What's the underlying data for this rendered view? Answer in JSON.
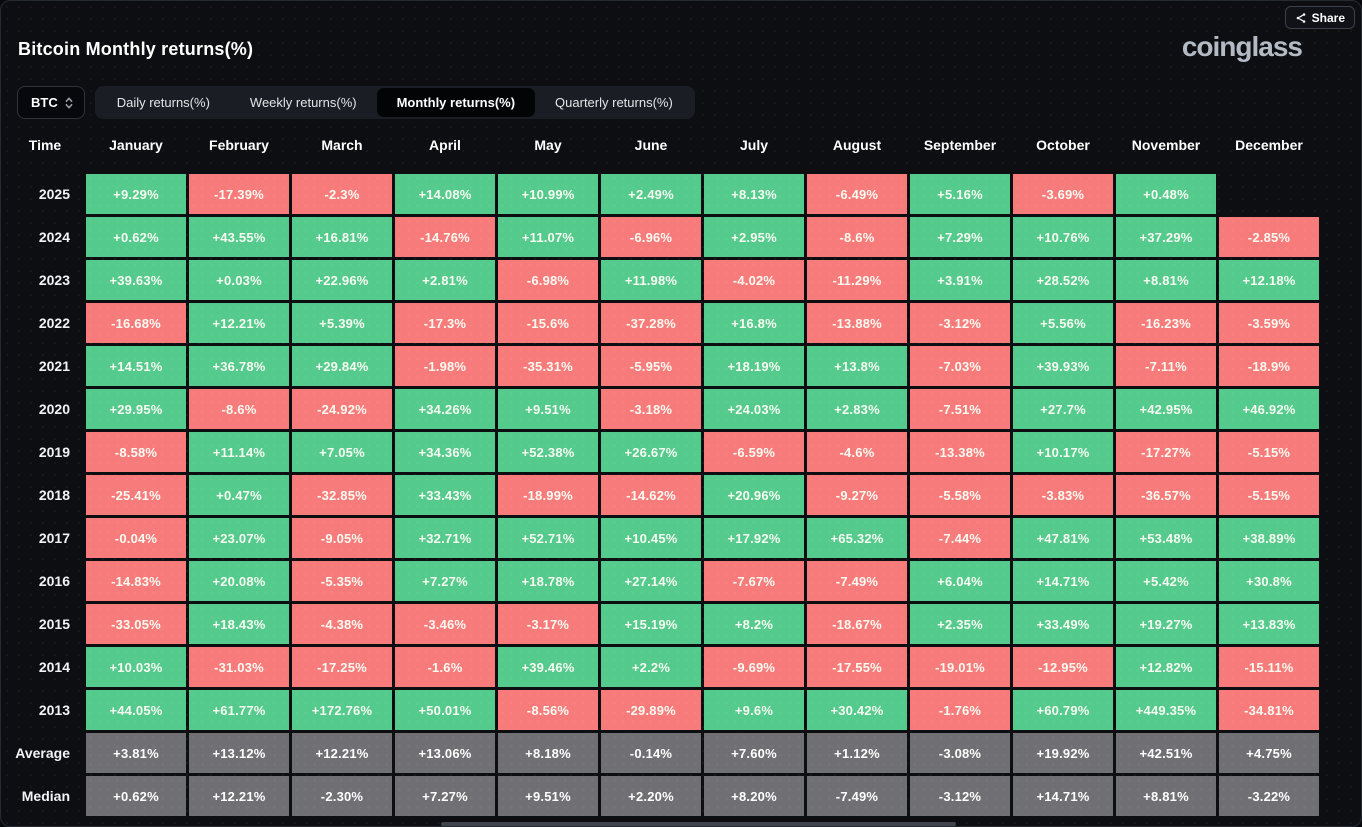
{
  "header": {
    "title": "Bitcoin Monthly returns(%)",
    "brand": "coinglass",
    "share_label": "Share"
  },
  "controls": {
    "symbol": "BTC",
    "tabs": [
      {
        "label": "Daily returns(%)",
        "active": false
      },
      {
        "label": "Weekly returns(%)",
        "active": false
      },
      {
        "label": "Monthly returns(%)",
        "active": true
      },
      {
        "label": "Quarterly returns(%)",
        "active": false
      }
    ]
  },
  "colors": {
    "positive": "#55ca8d",
    "negative": "#f87b7b",
    "summary": "#707074",
    "tab_active_bg": "#030406"
  },
  "chart_data": {
    "type": "heatmap",
    "title": "Bitcoin Monthly returns(%)",
    "row_header": "Time",
    "columns": [
      "January",
      "February",
      "March",
      "April",
      "May",
      "June",
      "July",
      "August",
      "September",
      "October",
      "November",
      "December"
    ],
    "rows": [
      {
        "label": "2025",
        "kind": "year",
        "values": [
          "+9.29%",
          "-17.39%",
          "-2.3%",
          "+14.08%",
          "+10.99%",
          "+2.49%",
          "+8.13%",
          "-6.49%",
          "+5.16%",
          "-3.69%",
          "+0.48%",
          null
        ]
      },
      {
        "label": "2024",
        "kind": "year",
        "values": [
          "+0.62%",
          "+43.55%",
          "+16.81%",
          "-14.76%",
          "+11.07%",
          "-6.96%",
          "+2.95%",
          "-8.6%",
          "+7.29%",
          "+10.76%",
          "+37.29%",
          "-2.85%"
        ]
      },
      {
        "label": "2023",
        "kind": "year",
        "values": [
          "+39.63%",
          "+0.03%",
          "+22.96%",
          "+2.81%",
          "-6.98%",
          "+11.98%",
          "-4.02%",
          "-11.29%",
          "+3.91%",
          "+28.52%",
          "+8.81%",
          "+12.18%"
        ]
      },
      {
        "label": "2022",
        "kind": "year",
        "values": [
          "-16.68%",
          "+12.21%",
          "+5.39%",
          "-17.3%",
          "-15.6%",
          "-37.28%",
          "+16.8%",
          "-13.88%",
          "-3.12%",
          "+5.56%",
          "-16.23%",
          "-3.59%"
        ]
      },
      {
        "label": "2021",
        "kind": "year",
        "values": [
          "+14.51%",
          "+36.78%",
          "+29.84%",
          "-1.98%",
          "-35.31%",
          "-5.95%",
          "+18.19%",
          "+13.8%",
          "-7.03%",
          "+39.93%",
          "-7.11%",
          "-18.9%"
        ]
      },
      {
        "label": "2020",
        "kind": "year",
        "values": [
          "+29.95%",
          "-8.6%",
          "-24.92%",
          "+34.26%",
          "+9.51%",
          "-3.18%",
          "+24.03%",
          "+2.83%",
          "-7.51%",
          "+27.7%",
          "+42.95%",
          "+46.92%"
        ]
      },
      {
        "label": "2019",
        "kind": "year",
        "values": [
          "-8.58%",
          "+11.14%",
          "+7.05%",
          "+34.36%",
          "+52.38%",
          "+26.67%",
          "-6.59%",
          "-4.6%",
          "-13.38%",
          "+10.17%",
          "-17.27%",
          "-5.15%"
        ]
      },
      {
        "label": "2018",
        "kind": "year",
        "values": [
          "-25.41%",
          "+0.47%",
          "-32.85%",
          "+33.43%",
          "-18.99%",
          "-14.62%",
          "+20.96%",
          "-9.27%",
          "-5.58%",
          "-3.83%",
          "-36.57%",
          "-5.15%"
        ]
      },
      {
        "label": "2017",
        "kind": "year",
        "values": [
          "-0.04%",
          "+23.07%",
          "-9.05%",
          "+32.71%",
          "+52.71%",
          "+10.45%",
          "+17.92%",
          "+65.32%",
          "-7.44%",
          "+47.81%",
          "+53.48%",
          "+38.89%"
        ]
      },
      {
        "label": "2016",
        "kind": "year",
        "values": [
          "-14.83%",
          "+20.08%",
          "-5.35%",
          "+7.27%",
          "+18.78%",
          "+27.14%",
          "-7.67%",
          "-7.49%",
          "+6.04%",
          "+14.71%",
          "+5.42%",
          "+30.8%"
        ]
      },
      {
        "label": "2015",
        "kind": "year",
        "values": [
          "-33.05%",
          "+18.43%",
          "-4.38%",
          "-3.46%",
          "-3.17%",
          "+15.19%",
          "+8.2%",
          "-18.67%",
          "+2.35%",
          "+33.49%",
          "+19.27%",
          "+13.83%"
        ]
      },
      {
        "label": "2014",
        "kind": "year",
        "values": [
          "+10.03%",
          "-31.03%",
          "-17.25%",
          "-1.6%",
          "+39.46%",
          "+2.2%",
          "-9.69%",
          "-17.55%",
          "-19.01%",
          "-12.95%",
          "+12.82%",
          "-15.11%"
        ]
      },
      {
        "label": "2013",
        "kind": "year",
        "values": [
          "+44.05%",
          "+61.77%",
          "+172.76%",
          "+50.01%",
          "-8.56%",
          "-29.89%",
          "+9.6%",
          "+30.42%",
          "-1.76%",
          "+60.79%",
          "+449.35%",
          "-34.81%"
        ]
      },
      {
        "label": "Average",
        "kind": "summary",
        "values": [
          "+3.81%",
          "+13.12%",
          "+12.21%",
          "+13.06%",
          "+8.18%",
          "-0.14%",
          "+7.60%",
          "+1.12%",
          "-3.08%",
          "+19.92%",
          "+42.51%",
          "+4.75%"
        ]
      },
      {
        "label": "Median",
        "kind": "summary",
        "values": [
          "+0.62%",
          "+12.21%",
          "-2.30%",
          "+7.27%",
          "+9.51%",
          "+2.20%",
          "+8.20%",
          "-7.49%",
          "-3.12%",
          "+14.71%",
          "+8.81%",
          "-3.22%"
        ]
      }
    ]
  }
}
